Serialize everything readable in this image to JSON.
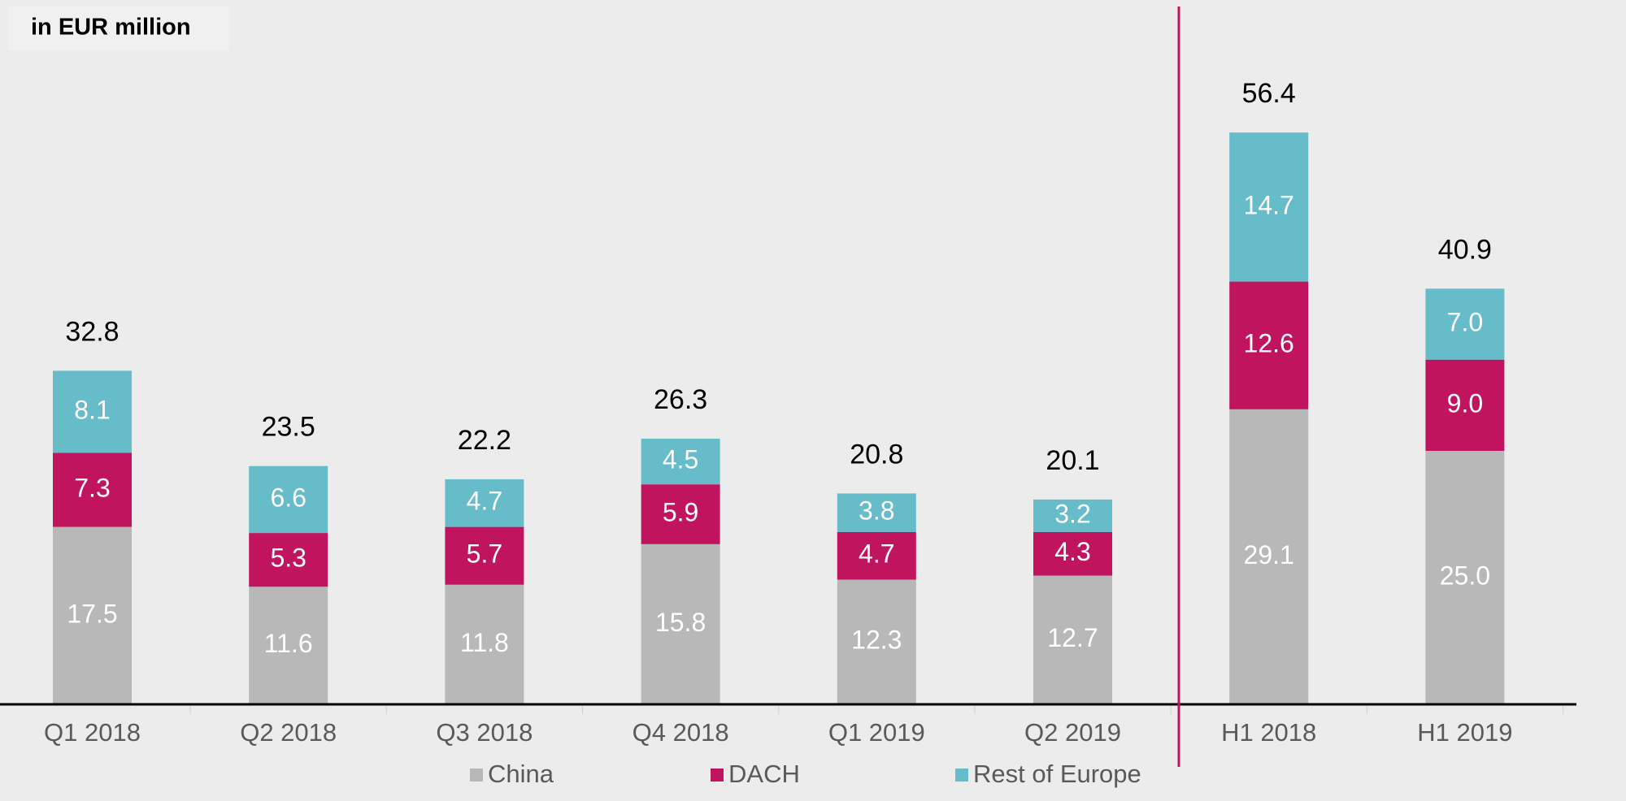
{
  "chart_data": {
    "type": "stacked-bar",
    "title": "in EUR million",
    "categories": [
      "Q1 2018",
      "Q2 2018",
      "Q3 2018",
      "Q4 2018",
      "Q1 2019",
      "Q2 2019",
      "H1 2018",
      "H1 2019"
    ],
    "series": [
      {
        "name": "China",
        "color": "#b8b8b8",
        "values": [
          17.5,
          11.6,
          11.8,
          15.8,
          12.3,
          12.7,
          29.1,
          25
        ],
        "value_labels": [
          "17.5",
          "11.6",
          "11.8",
          "15.8",
          "12.3",
          "12.7",
          "29.1",
          "25.0"
        ]
      },
      {
        "name": "DACH",
        "color": "#c0145f",
        "values": [
          7.3,
          5.3,
          5.7,
          5.9,
          4.7,
          4.3,
          12.6,
          9
        ],
        "value_labels": [
          "7.3",
          "5.3",
          "5.7",
          "5.9",
          "4.7",
          "4.3",
          "12.6",
          "9.0"
        ]
      },
      {
        "name": "Rest of Europe",
        "color": "#66bcc9",
        "values": [
          8.1,
          6.6,
          4.7,
          4.5,
          3.8,
          3.2,
          14.7,
          7
        ],
        "value_labels": [
          "8.1",
          "6.6",
          "4.7",
          "4.5",
          "3.8",
          "3.2",
          "14.7",
          "7.0"
        ]
      }
    ],
    "totals": [
      32.8,
      23.5,
      22.2,
      26.3,
      20.8,
      20.1,
      56.4,
      40.9
    ],
    "divider_color": "#c0145f"
  }
}
